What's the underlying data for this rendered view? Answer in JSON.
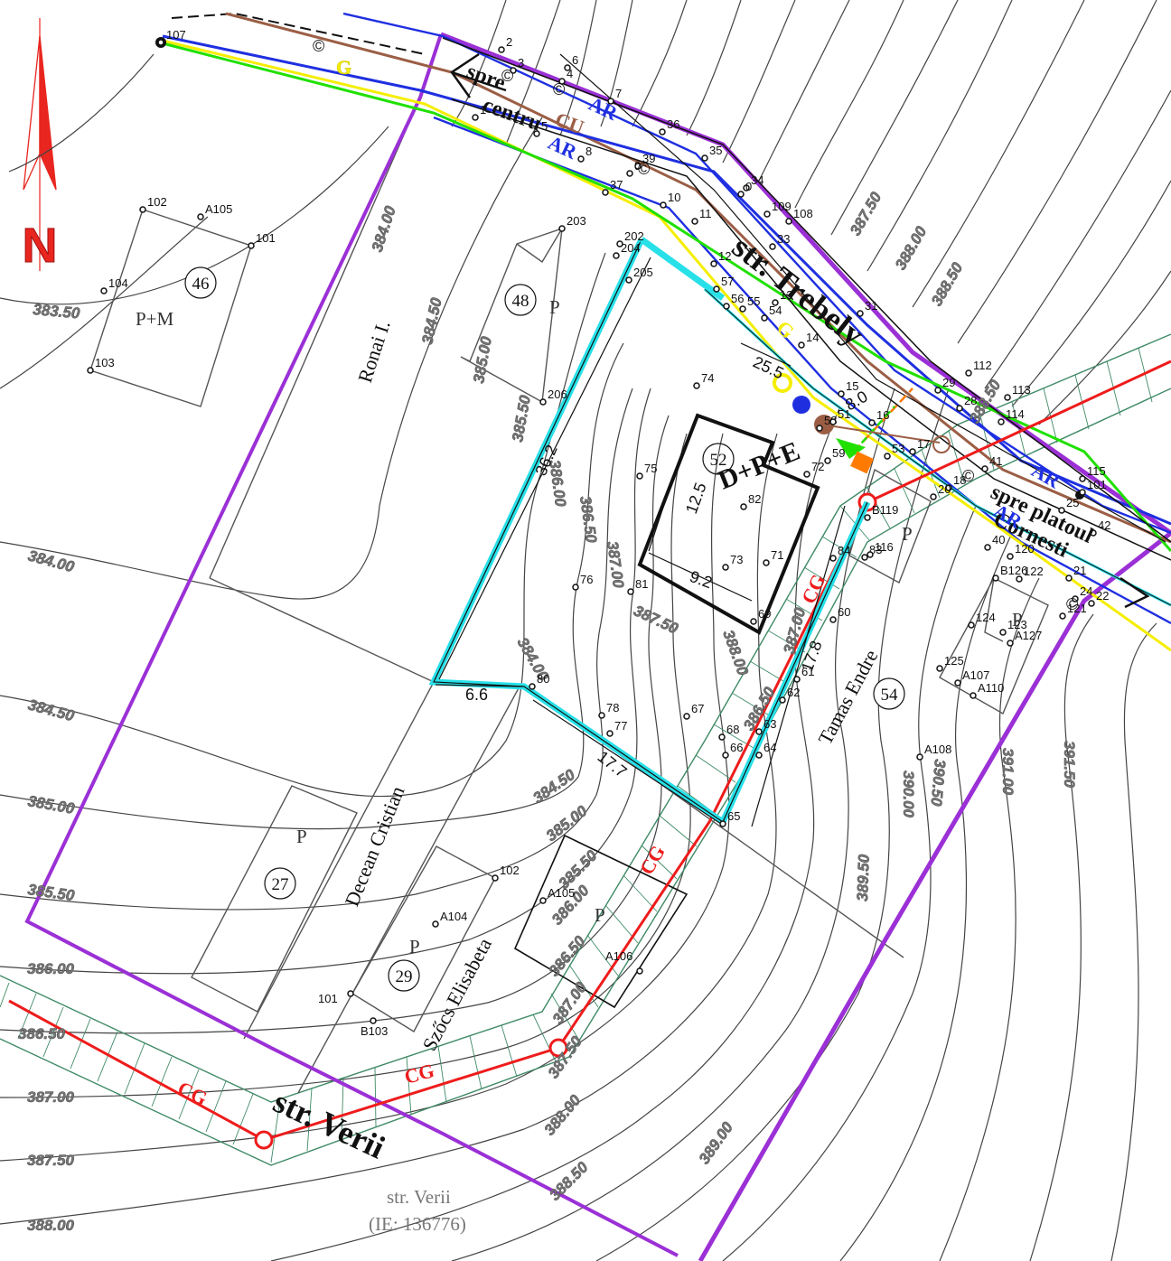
{
  "north": {
    "letter": "N",
    "color": "#e8261f"
  },
  "colors": {
    "boundary": "#9b30d6",
    "ar": "#1f2fe0",
    "cu": "#9b5e45",
    "g_green": "#20e000",
    "g_yellow": "#f5ee00",
    "cg": "#ee1c1c",
    "hatch": "#3f8a66",
    "cyan": "#27e0e8",
    "orange": "#ff7a00"
  },
  "contours": [
    "383.50",
    "384.00",
    "384.50",
    "385.00",
    "385.50",
    "386.00",
    "386.50",
    "387.00",
    "387.50",
    "388.00",
    "388.50",
    "389.00",
    "389.50",
    "390.00",
    "390.50",
    "391.00",
    "391.50"
  ],
  "elevation_labels": {
    "e_383_50": "383.50",
    "e_384_00_a": "384.00",
    "e_384_50_a": "384.50",
    "e_385_00_a": "385.00",
    "e_385_50_a": "385.50",
    "e_386_00_a": "386.00",
    "e_386_50_a": "386.50",
    "e_386_50_b": "386.50",
    "e_387_00_a": "387.00",
    "e_387_50_a": "387.50",
    "e_388_00_a": "388.00",
    "e_388_00_b": "388.00",
    "e_388_50_a": "388.50",
    "e_384_00_b": "384.00",
    "e_384_50_b": "384.50",
    "e_385_00_b": "385.00",
    "e_385_50_b": "385.50",
    "e_386_00_b": "386.00",
    "e_386_50_c": "386.50",
    "e_387_00_b": "387.00",
    "e_387_50_b": "387.50",
    "e_388_00_c": "388.00",
    "e_384_00_c": "384.00",
    "e_384_50_c": "384.50",
    "e_385_00_c": "385.00",
    "e_385_50_c": "385.50",
    "e_386_00_c": "386.00",
    "e_388_50_b": "388.50",
    "e_386_50_d": "386.50",
    "e_387_00_c": "387.00",
    "e_387_50_c": "387.50",
    "e_388_00_d": "388.00",
    "e_388_50_c": "388.50",
    "e_389_00": "389.00",
    "e_389_50": "389.50",
    "e_390_00": "390.00",
    "e_390_50": "390.50",
    "e_391_00": "391.00",
    "e_391_50": "391.50",
    "e_387_50_d": "387.50",
    "e_388_00_e": "388.00",
    "e_388_50_d": "388.50",
    "e_387_00_d": "387.00",
    "e_387_50_e": "387.50",
    "e_388_00_f": "388.00"
  },
  "streets": {
    "trebely": "str. Trebely",
    "verii": "str. Verii",
    "verii_gray": "str. Verii",
    "verii_ie": "(IE: 136776)"
  },
  "directions": {
    "spre": "spre",
    "centru": "centru",
    "spre_platou": "spre platoul",
    "cornesti": "Cornesti"
  },
  "owners": {
    "ronai": "Ronai I.",
    "decean": "Decean Cristian",
    "szocs": "Szőcs Elisabeta",
    "tamas": "Tamas Endre"
  },
  "lots": {
    "l46": "46",
    "l48": "48",
    "l52": "52",
    "l27": "27",
    "l29": "29",
    "l54": "54"
  },
  "building_labels": {
    "pm": "P+M",
    "p48": "P",
    "dpe": "D+P+E",
    "p27": "P",
    "p29": "P",
    "p_szocs": "P",
    "p_116": "P",
    "p_123": "P"
  },
  "dimensions": {
    "d25_5": "25.5",
    "d36_2": "36.2",
    "d12_5": "12.5",
    "d9_2": "9.2",
    "d6_6": "6.6",
    "d17_7": "17.7",
    "d17_8": "17.8",
    "d8_0": "8.0"
  },
  "utility_labels": {
    "g": "G",
    "cu": "CU",
    "ar1": "AR",
    "ar2": "AR",
    "ar3": "AR",
    "ar4": "AR",
    "cg1": "CG",
    "cg2": "CG",
    "cg3": "CG",
    "cg4": "CG",
    "cg5": "CG",
    "g2": "G"
  },
  "points": [
    {
      "id": "107",
      "t": "107"
    },
    {
      "id": "2",
      "t": "2"
    },
    {
      "id": "3",
      "t": "3"
    },
    {
      "id": "4",
      "t": "4"
    },
    {
      "id": "6",
      "t": "6"
    },
    {
      "id": "7",
      "t": "7"
    },
    {
      "id": "1",
      "t": "1"
    },
    {
      "id": "5",
      "t": "5"
    },
    {
      "id": "8",
      "t": "8"
    },
    {
      "id": "9",
      "t": "9"
    },
    {
      "id": "36",
      "t": "36"
    },
    {
      "id": "35",
      "t": "35"
    },
    {
      "id": "39",
      "t": "39"
    },
    {
      "id": "37",
      "t": "37"
    },
    {
      "id": "10",
      "t": "10"
    },
    {
      "id": "11",
      "t": "11"
    },
    {
      "id": "34",
      "t": "34"
    },
    {
      "id": "109",
      "t": "109"
    },
    {
      "id": "108",
      "t": "108"
    },
    {
      "id": "33",
      "t": "33"
    },
    {
      "id": "12",
      "t": "12"
    },
    {
      "id": "102a",
      "t": "102"
    },
    {
      "id": "A105a",
      "t": "A105"
    },
    {
      "id": "101a",
      "t": "101"
    },
    {
      "id": "104",
      "t": "104"
    },
    {
      "id": "103",
      "t": "103"
    },
    {
      "id": "203",
      "t": "203"
    },
    {
      "id": "202",
      "t": "202"
    },
    {
      "id": "204",
      "t": "204"
    },
    {
      "id": "205",
      "t": "205"
    },
    {
      "id": "206",
      "t": "206"
    },
    {
      "id": "57",
      "t": "57"
    },
    {
      "id": "56",
      "t": "56"
    },
    {
      "id": "55",
      "t": "55"
    },
    {
      "id": "54",
      "t": "54"
    },
    {
      "id": "13",
      "t": "13"
    },
    {
      "id": "14",
      "t": "14"
    },
    {
      "id": "31",
      "t": "31"
    },
    {
      "id": "74",
      "t": "74"
    },
    {
      "id": "15",
      "t": "15"
    },
    {
      "id": "16",
      "t": "16"
    },
    {
      "id": "58",
      "t": "58"
    },
    {
      "id": "59",
      "t": "59"
    },
    {
      "id": "72",
      "t": "72"
    },
    {
      "id": "53",
      "t": "53"
    },
    {
      "id": "17",
      "t": "17"
    },
    {
      "id": "75",
      "t": "75"
    },
    {
      "id": "82",
      "t": "82"
    },
    {
      "id": "112",
      "t": "112"
    },
    {
      "id": "113",
      "t": "113"
    },
    {
      "id": "114",
      "t": "114"
    },
    {
      "id": "29",
      "t": "29"
    },
    {
      "id": "28",
      "t": "28"
    },
    {
      "id": "41",
      "t": "41"
    },
    {
      "id": "18",
      "t": "18"
    },
    {
      "id": "20",
      "t": "20"
    },
    {
      "id": "B119",
      "t": "B119"
    },
    {
      "id": "115",
      "t": "115"
    },
    {
      "id": "101b",
      "t": "101"
    },
    {
      "id": "42",
      "t": "42"
    },
    {
      "id": "84",
      "t": "84"
    },
    {
      "id": "83",
      "t": "83"
    },
    {
      "id": "116",
      "t": "116"
    },
    {
      "id": "73",
      "t": "73"
    },
    {
      "id": "71",
      "t": "71"
    },
    {
      "id": "76",
      "t": "76"
    },
    {
      "id": "81",
      "t": "81"
    },
    {
      "id": "69",
      "t": "69"
    },
    {
      "id": "60",
      "t": "60"
    },
    {
      "id": "B126",
      "t": "B126"
    },
    {
      "id": "120",
      "t": "120"
    },
    {
      "id": "122",
      "t": "122"
    },
    {
      "id": "21",
      "t": "21"
    },
    {
      "id": "24",
      "t": "24"
    },
    {
      "id": "22",
      "t": "22"
    },
    {
      "id": "121",
      "t": "121"
    },
    {
      "id": "124",
      "t": "124"
    },
    {
      "id": "123",
      "t": "123"
    },
    {
      "id": "A127",
      "t": "A127"
    },
    {
      "id": "125",
      "t": "125"
    },
    {
      "id": "A107",
      "t": "A107"
    },
    {
      "id": "A110",
      "t": "A110"
    },
    {
      "id": "61",
      "t": "61"
    },
    {
      "id": "62",
      "t": "62"
    },
    {
      "id": "80",
      "t": "80"
    },
    {
      "id": "78",
      "t": "78"
    },
    {
      "id": "77",
      "t": "77"
    },
    {
      "id": "67",
      "t": "67"
    },
    {
      "id": "68",
      "t": "68"
    },
    {
      "id": "66",
      "t": "66"
    },
    {
      "id": "63",
      "t": "63"
    },
    {
      "id": "64",
      "t": "64"
    },
    {
      "id": "65",
      "t": "65"
    },
    {
      "id": "A108",
      "t": "A108"
    },
    {
      "id": "102b",
      "t": "102"
    },
    {
      "id": "A105b",
      "t": "A105"
    },
    {
      "id": "A104",
      "t": "A104"
    },
    {
      "id": "A106",
      "t": "A106"
    },
    {
      "id": "101c",
      "t": "101"
    },
    {
      "id": "B103",
      "t": "B103"
    },
    {
      "id": "40",
      "t": "40"
    },
    {
      "id": "25",
      "t": "25"
    },
    {
      "id": "0",
      "t": "0"
    },
    {
      "id": "51",
      "t": "51"
    }
  ]
}
